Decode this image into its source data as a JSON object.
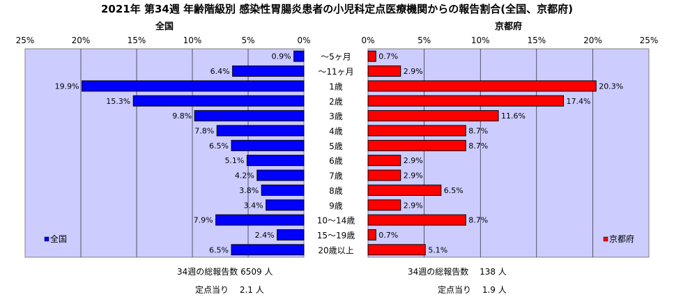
{
  "chart_data": {
    "type": "bar",
    "title": "2021年 第34週 年齢階級別 感染性胃腸炎患者の小児科定点医療機関からの報告割合(全国、京都府)",
    "categories": [
      "～5ヶ月",
      "～11ヶ月",
      "1歳",
      "2歳",
      "3歳",
      "4歳",
      "5歳",
      "6歳",
      "7歳",
      "8歳",
      "9歳",
      "10～14歳",
      "15～19歳",
      "20歳以上"
    ],
    "x_ticks": [
      "25%",
      "20%",
      "15%",
      "10%",
      "5%",
      "0%"
    ],
    "x_ticks_right": [
      "0%",
      "5%",
      "10%",
      "15%",
      "20%",
      "25%"
    ],
    "xlim": [
      0,
      25
    ],
    "colors": {
      "national": "#0000ff",
      "kyoto": "#ff0000",
      "plot_bg": "#ccccff"
    },
    "series": [
      {
        "name": "全国",
        "side_title": "全国",
        "values": [
          0.9,
          6.4,
          19.9,
          15.3,
          9.8,
          7.8,
          6.5,
          5.1,
          4.2,
          3.8,
          3.4,
          7.9,
          2.4,
          6.5
        ],
        "labels": [
          "0.9%",
          "6.4%",
          "19.9%",
          "15.3%",
          "9.8%",
          "7.8%",
          "6.5%",
          "5.1%",
          "4.2%",
          "3.8%",
          "3.4%",
          "7.9%",
          "2.4%",
          "6.5%"
        ],
        "summary_total": "34週の総報告数 6509 人",
        "summary_per": "定点当り　 2.1 人"
      },
      {
        "name": "京都府",
        "side_title": "京都府",
        "values": [
          0.7,
          2.9,
          20.3,
          17.4,
          11.6,
          8.7,
          8.7,
          2.9,
          2.9,
          6.5,
          2.9,
          8.7,
          0.7,
          5.1
        ],
        "labels": [
          "0.7%",
          "2.9%",
          "20.3%",
          "17.4%",
          "11.6%",
          "8.7%",
          "8.7%",
          "2.9%",
          "2.9%",
          "6.5%",
          "2.9%",
          "8.7%",
          "0.7%",
          "5.1%"
        ],
        "summary_total": "34週の総報告数　 138 人",
        "summary_per": "定点当り　 1.9 人"
      }
    ]
  }
}
